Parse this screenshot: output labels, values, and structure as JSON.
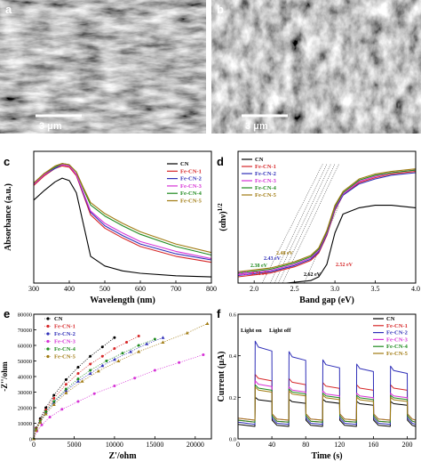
{
  "colors": {
    "CN": "#000000",
    "Fe-CN-1": "#d62728",
    "Fe-CN-2": "#2f2fb8",
    "Fe-CN-3": "#d633d6",
    "Fe-CN-4": "#1f8a1f",
    "Fe-CN-5": "#a07a10"
  },
  "panels": {
    "a": {
      "label": "a",
      "scale_bar": "3 μm"
    },
    "b": {
      "label": "b",
      "scale_bar": "3 μm"
    },
    "c": {
      "label": "c"
    },
    "d": {
      "label": "d"
    },
    "e": {
      "label": "e"
    },
    "f": {
      "label": "f"
    }
  },
  "chart_data": [
    {
      "panel": "c",
      "type": "line",
      "xlabel": "Wavelength (nm)",
      "ylabel": "Absorbance (a.u.)",
      "xlim": [
        300,
        800
      ],
      "xticks": [
        "300",
        "400",
        "500",
        "600",
        "700",
        "800"
      ],
      "legend": [
        "CN",
        "Fe-CN-1",
        "Fe-CN-2",
        "Fe-CN-3",
        "Fe-CN-4",
        "Fe-CN-5"
      ],
      "legend_position": "top-right",
      "series": [
        {
          "name": "CN",
          "x": [
            300,
            330,
            360,
            380,
            400,
            420,
            440,
            460,
            500,
            550,
            600,
            700,
            800
          ],
          "y": [
            0.68,
            0.76,
            0.83,
            0.86,
            0.84,
            0.74,
            0.48,
            0.22,
            0.14,
            0.1,
            0.08,
            0.06,
            0.05
          ]
        },
        {
          "name": "Fe-CN-1",
          "x": [
            300,
            330,
            360,
            380,
            400,
            420,
            440,
            460,
            500,
            550,
            600,
            700,
            800
          ],
          "y": [
            0.8,
            0.88,
            0.94,
            0.96,
            0.95,
            0.88,
            0.72,
            0.56,
            0.45,
            0.37,
            0.3,
            0.22,
            0.17
          ]
        },
        {
          "name": "Fe-CN-2",
          "x": [
            300,
            330,
            360,
            380,
            400,
            420,
            440,
            460,
            500,
            550,
            600,
            700,
            800
          ],
          "y": [
            0.81,
            0.89,
            0.94,
            0.97,
            0.96,
            0.89,
            0.73,
            0.58,
            0.47,
            0.39,
            0.32,
            0.24,
            0.19
          ]
        },
        {
          "name": "Fe-CN-3",
          "x": [
            300,
            330,
            360,
            380,
            400,
            420,
            440,
            460,
            500,
            550,
            600,
            700,
            800
          ],
          "y": [
            0.81,
            0.89,
            0.95,
            0.97,
            0.96,
            0.89,
            0.74,
            0.59,
            0.49,
            0.41,
            0.34,
            0.26,
            0.2
          ]
        },
        {
          "name": "Fe-CN-4",
          "x": [
            300,
            330,
            360,
            380,
            400,
            420,
            440,
            460,
            500,
            550,
            600,
            700,
            800
          ],
          "y": [
            0.82,
            0.9,
            0.95,
            0.98,
            0.97,
            0.91,
            0.77,
            0.64,
            0.55,
            0.47,
            0.4,
            0.3,
            0.23
          ]
        },
        {
          "name": "Fe-CN-5",
          "x": [
            300,
            330,
            360,
            380,
            400,
            420,
            440,
            460,
            500,
            550,
            600,
            700,
            800
          ],
          "y": [
            0.82,
            0.9,
            0.96,
            0.98,
            0.97,
            0.91,
            0.78,
            0.66,
            0.57,
            0.49,
            0.42,
            0.32,
            0.25
          ]
        }
      ]
    },
    {
      "panel": "d",
      "type": "line",
      "xlabel": "Band gap (eV)",
      "ylabel": "(αhν)",
      "ylabel_sup": "1/2",
      "xlim": [
        1.8,
        4.0
      ],
      "xticks": [
        "2.0",
        "2.5",
        "3.0",
        "3.5",
        "4.0"
      ],
      "legend": [
        "CN",
        "Fe-CN-1",
        "Fe-CN-2",
        "Fe-CN-3",
        "Fe-CN-4",
        "Fe-CN-5"
      ],
      "legend_position": "top-left",
      "annotations": [
        "2.48 eV",
        "2.43 eV",
        "2.38 eV",
        "2.32 eV",
        "2.24 eV",
        "2.62 eV",
        "2.52 eV"
      ],
      "series": [
        {
          "name": "CN",
          "x": [
            1.8,
            2.4,
            2.7,
            2.8,
            2.9,
            3.0,
            3.1,
            3.3,
            3.5,
            3.7,
            4.0
          ],
          "y": [
            0.0,
            0.0,
            0.02,
            0.05,
            0.15,
            0.4,
            0.55,
            0.6,
            0.62,
            0.62,
            0.6
          ]
        },
        {
          "name": "Fe-CN-1",
          "x": [
            1.8,
            2.2,
            2.5,
            2.7,
            2.8,
            2.9,
            3.0,
            3.1,
            3.3,
            3.5,
            3.7,
            4.0
          ],
          "y": [
            0.05,
            0.08,
            0.13,
            0.18,
            0.24,
            0.38,
            0.58,
            0.7,
            0.8,
            0.84,
            0.87,
            0.89
          ]
        },
        {
          "name": "Fe-CN-2",
          "x": [
            1.8,
            2.2,
            2.5,
            2.7,
            2.8,
            2.9,
            3.0,
            3.1,
            3.3,
            3.5,
            3.7,
            4.0
          ],
          "y": [
            0.06,
            0.09,
            0.14,
            0.19,
            0.25,
            0.39,
            0.59,
            0.7,
            0.79,
            0.83,
            0.86,
            0.88
          ]
        },
        {
          "name": "Fe-CN-3",
          "x": [
            1.8,
            2.2,
            2.5,
            2.7,
            2.8,
            2.9,
            3.0,
            3.1,
            3.3,
            3.5,
            3.7,
            4.0
          ],
          "y": [
            0.07,
            0.1,
            0.15,
            0.2,
            0.26,
            0.4,
            0.6,
            0.71,
            0.81,
            0.85,
            0.88,
            0.9
          ]
        },
        {
          "name": "Fe-CN-4",
          "x": [
            1.8,
            2.2,
            2.5,
            2.7,
            2.8,
            2.9,
            3.0,
            3.1,
            3.3,
            3.5,
            3.7,
            4.0
          ],
          "y": [
            0.08,
            0.11,
            0.16,
            0.21,
            0.27,
            0.41,
            0.61,
            0.72,
            0.82,
            0.86,
            0.88,
            0.9
          ]
        },
        {
          "name": "Fe-CN-5",
          "x": [
            1.8,
            2.2,
            2.5,
            2.7,
            2.8,
            2.9,
            3.0,
            3.1,
            3.3,
            3.5,
            3.7,
            4.0
          ],
          "y": [
            0.09,
            0.12,
            0.17,
            0.22,
            0.28,
            0.42,
            0.62,
            0.73,
            0.83,
            0.87,
            0.89,
            0.91
          ]
        }
      ]
    },
    {
      "panel": "e",
      "type": "scatter",
      "xlabel": "Z'/ohm",
      "ylabel": "-Z''/ohm",
      "xlim": [
        0,
        22000
      ],
      "ylim": [
        0,
        80000
      ],
      "xticks": [
        "0",
        "5000",
        "10000",
        "15000",
        "20000"
      ],
      "yticks": [
        "0",
        "10000",
        "20000",
        "30000",
        "40000",
        "50000",
        "60000",
        "70000",
        "80000"
      ],
      "legend": [
        "CN",
        "Fe-CN-1",
        "Fe-CN-2",
        "Fe-CN-3",
        "Fe-CN-4",
        "Fe-CN-5"
      ],
      "legend_position": "top-left",
      "series": [
        {
          "name": "CN",
          "x": [
            0,
            300,
            800,
            1500,
            2500,
            4000,
            5500,
            7000,
            8500,
            10000
          ],
          "y": [
            0,
            7000,
            13000,
            20000,
            28000,
            38000,
            46000,
            53000,
            59000,
            65000
          ]
        },
        {
          "name": "Fe-CN-1",
          "x": [
            0,
            300,
            800,
            1500,
            2500,
            4000,
            5500,
            7000,
            8500,
            10000,
            11500,
            13000
          ],
          "y": [
            0,
            6500,
            12000,
            18500,
            26000,
            35000,
            42000,
            48000,
            53000,
            58000,
            62000,
            66000
          ]
        },
        {
          "name": "Fe-CN-2",
          "x": [
            0,
            300,
            800,
            1500,
            2500,
            4000,
            5500,
            7000,
            8500,
            10000,
            12000,
            14000,
            16000
          ],
          "y": [
            0,
            6000,
            11000,
            17000,
            23500,
            31000,
            37000,
            42000,
            47000,
            51000,
            56000,
            61000,
            65000
          ]
        },
        {
          "name": "Fe-CN-3",
          "x": [
            0,
            400,
            1000,
            2000,
            3500,
            5500,
            7500,
            10000,
            12500,
            15000,
            18000,
            21000
          ],
          "y": [
            0,
            5000,
            9000,
            14000,
            19000,
            24000,
            29000,
            34000,
            39000,
            44000,
            49000,
            54000
          ]
        },
        {
          "name": "Fe-CN-4",
          "x": [
            0,
            300,
            800,
            1500,
            2500,
            4000,
            5500,
            7000,
            9000,
            11000,
            13000,
            15000
          ],
          "y": [
            0,
            6000,
            11500,
            17500,
            24000,
            32000,
            38500,
            44000,
            50000,
            55000,
            60000,
            64000
          ]
        },
        {
          "name": "Fe-CN-5",
          "x": [
            0,
            300,
            800,
            1500,
            2500,
            4000,
            6000,
            8000,
            10500,
            13000,
            16000,
            19000,
            21500
          ],
          "y": [
            0,
            5500,
            10500,
            16000,
            22000,
            29500,
            37000,
            43500,
            50000,
            56000,
            62000,
            68000,
            74000
          ]
        }
      ]
    },
    {
      "panel": "f",
      "type": "line",
      "xlabel": "Time (s)",
      "ylabel": "Current (μA)",
      "xlim": [
        0,
        210
      ],
      "ylim": [
        0,
        0.6
      ],
      "xticks": [
        "0",
        "20",
        "40",
        "60",
        "80",
        "100",
        "120",
        "140",
        "160",
        "180",
        "200"
      ],
      "yticks": [
        "0.0",
        "0.2",
        "0.4",
        "0.6"
      ],
      "annotations": [
        "Light on",
        "Light off"
      ],
      "legend": [
        "CN",
        "Fe-CN-1",
        "Fe-CN-2",
        "Fe-CN-3",
        "Fe-CN-4",
        "Fe-CN-5"
      ],
      "legend_position": "top-right",
      "on_intervals": [
        [
          20,
          40
        ],
        [
          60,
          80
        ],
        [
          100,
          120
        ],
        [
          140,
          160
        ],
        [
          180,
          200
        ]
      ],
      "series": [
        {
          "name": "CN",
          "dark": 0.06,
          "on": [
            0.2,
            0.19,
            0.19,
            0.18,
            0.18
          ]
        },
        {
          "name": "Fe-CN-1",
          "dark": 0.08,
          "on": [
            0.31,
            0.29,
            0.27,
            0.26,
            0.26
          ]
        },
        {
          "name": "Fe-CN-2",
          "dark": 0.07,
          "on": [
            0.47,
            0.42,
            0.38,
            0.36,
            0.35
          ]
        },
        {
          "name": "Fe-CN-3",
          "dark": 0.09,
          "on": [
            0.28,
            0.25,
            0.23,
            0.22,
            0.22
          ]
        },
        {
          "name": "Fe-CN-4",
          "dark": 0.08,
          "on": [
            0.26,
            0.24,
            0.22,
            0.21,
            0.21
          ]
        },
        {
          "name": "Fe-CN-5",
          "dark": 0.09,
          "on": [
            0.25,
            0.23,
            0.21,
            0.2,
            0.2
          ]
        }
      ]
    }
  ]
}
